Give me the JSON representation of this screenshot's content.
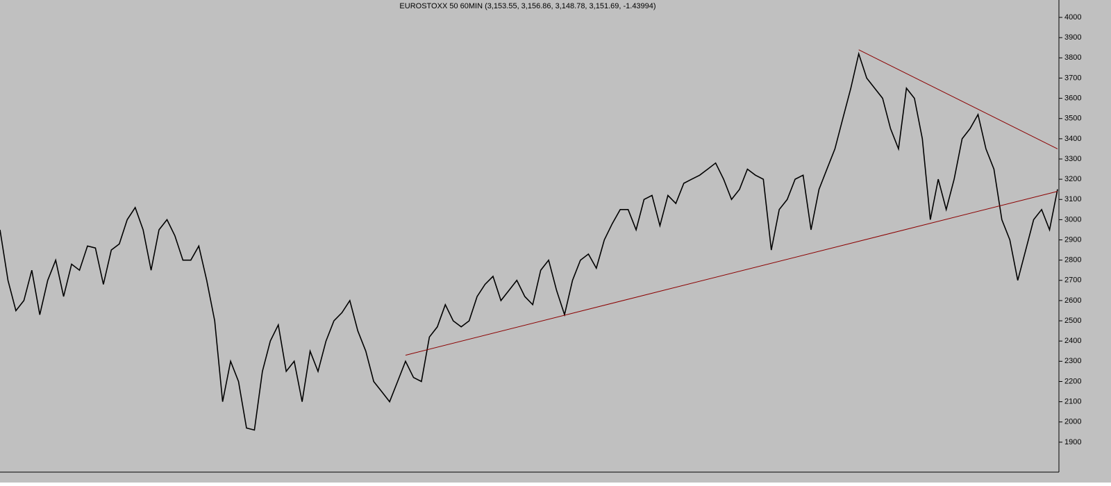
{
  "chart_data": {
    "type": "line",
    "title": "EUROSTOXX 50 60MIN (3,153.55, 3,156.86, 3,148.78, 3,151.69, -1.43994)",
    "series": [
      {
        "color": "#000000",
        "values": [
          2950,
          2700,
          2550,
          2600,
          2750,
          2530,
          2700,
          2800,
          2620,
          2780,
          2750,
          2870,
          2860,
          2680,
          2850,
          2880,
          3000,
          3060,
          2950,
          2750,
          2950,
          3000,
          2920,
          2800,
          2800,
          2870,
          2700,
          2500,
          2100,
          2300,
          2200,
          1970,
          1960,
          2250,
          2400,
          2480,
          2250,
          2300,
          2100,
          2350,
          2250,
          2400,
          2500,
          2540,
          2600,
          2450,
          2350,
          2200,
          2150,
          2100,
          2200,
          2300,
          2220,
          2200,
          2420,
          2470,
          2580,
          2500,
          2470,
          2500,
          2620,
          2680,
          2720,
          2600,
          2650,
          2700,
          2620,
          2580,
          2750,
          2800,
          2650,
          2530,
          2700,
          2800,
          2830,
          2760,
          2900,
          2980,
          3050,
          3050,
          2950,
          3100,
          3120,
          2970,
          3120,
          3080,
          3180,
          3200,
          3220,
          3250,
          3280,
          3200,
          3100,
          3150,
          3250,
          3220,
          3200,
          2850,
          3050,
          3100,
          3200,
          3220,
          2950,
          3150,
          3250,
          3350,
          3500,
          3650,
          3820,
          3700,
          3650,
          3600,
          3450,
          3350,
          3650,
          3600,
          3400,
          3000,
          3200,
          3050,
          3200,
          3400,
          3450,
          3520,
          3350,
          3250,
          3000,
          2900,
          2700,
          2850,
          3000,
          3050,
          2950,
          3150
        ]
      }
    ],
    "trendlines": [
      {
        "color": "#8b0000",
        "from": {
          "index": 51,
          "value": 2330
        },
        "to": {
          "index": 133,
          "value": 3140
        }
      },
      {
        "color": "#8b0000",
        "from": {
          "index": 108,
          "value": 3840
        },
        "to": {
          "index": 133,
          "value": 3350
        }
      }
    ],
    "ylim": [
      1752,
      4086
    ],
    "yticks": [
      1900,
      2000,
      2100,
      2200,
      2300,
      2400,
      2500,
      2600,
      2700,
      2800,
      2900,
      3000,
      3100,
      3200,
      3300,
      3400,
      3500,
      3600,
      3700,
      3800,
      3900,
      4000
    ],
    "background": "#c0c0c0"
  }
}
